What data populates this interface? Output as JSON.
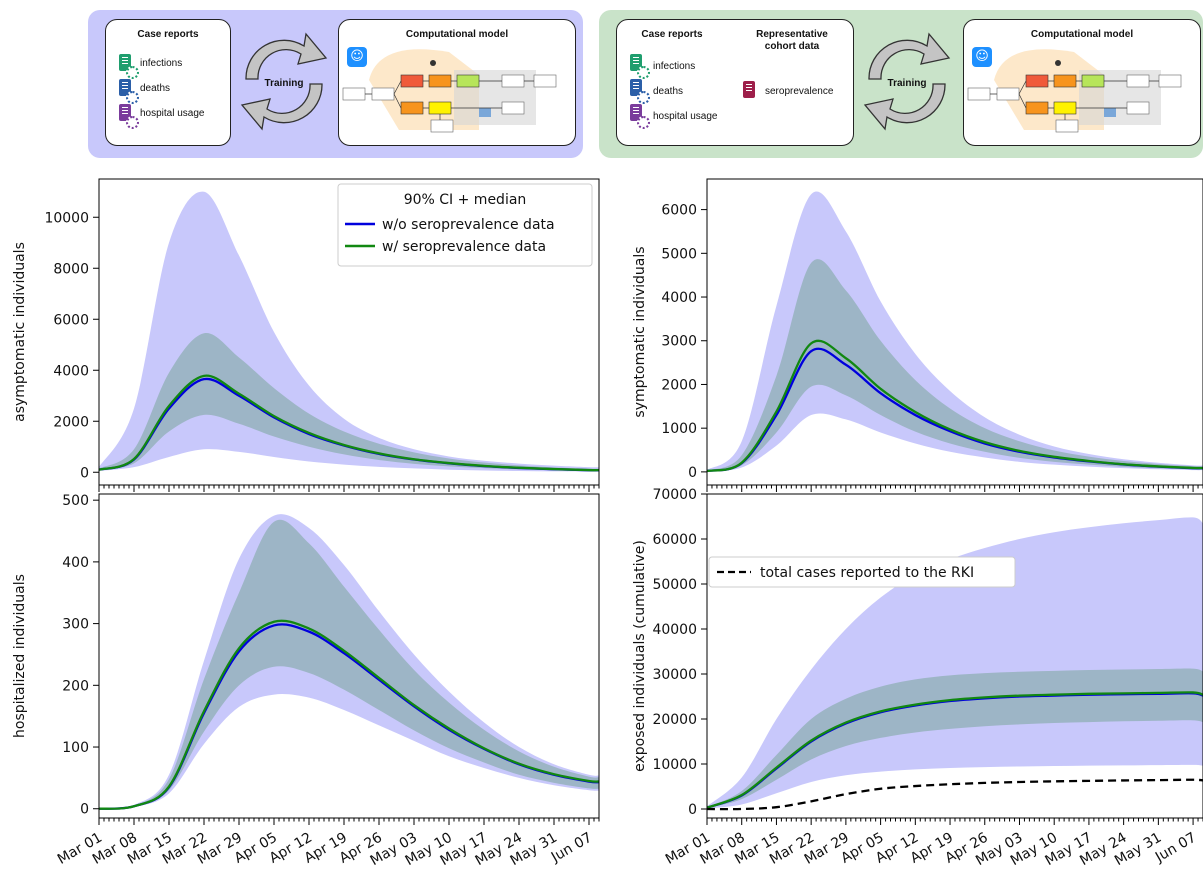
{
  "diagram": {
    "left": {
      "case_reports_title": "Case reports",
      "items": [
        "infections",
        "deaths",
        "hospital usage"
      ],
      "training_label": "Training",
      "model_title": "Computational model"
    },
    "right": {
      "case_reports_title": "Case reports",
      "items": [
        "infections",
        "deaths",
        "hospital usage"
      ],
      "cohort_title_1": "Representative",
      "cohort_title_2": "cohort data",
      "cohort_item": "seroprevalence",
      "training_label": "Training",
      "model_title": "Computational model"
    },
    "colors": {
      "left_panel": "#c8c8fb",
      "right_panel": "#c9e3c9",
      "infections_icon": "#1f9e6e",
      "deaths_icon": "#2b5fa8",
      "hospital_icon": "#7a3c9c",
      "seroprevalence_icon": "#9e1f4a",
      "compartment_red": "#f05a3a",
      "compartment_orange": "#f7941d",
      "compartment_green": "#b7e55a",
      "compartment_yellow": "#fff200"
    }
  },
  "legend": {
    "title": "90% CI + median",
    "without": "w/o seroprevalence data",
    "with": "w/ seroprevalence data",
    "rki": "total cases reported to the RKI"
  },
  "chart_data": [
    {
      "type": "area",
      "id": "asymptomatic",
      "ylabel": "asymptomatic individuals",
      "ylim": [
        -500,
        11500
      ],
      "yticks": [
        0,
        2000,
        4000,
        6000,
        8000,
        10000
      ],
      "x": [
        "Mar 01",
        "Mar 08",
        "Mar 15",
        "Mar 22",
        "Mar 29",
        "Apr 05",
        "Apr 12",
        "Apr 19",
        "Apr 26",
        "May 03",
        "May 10",
        "May 17",
        "May 24",
        "May 31",
        "Jun 07"
      ],
      "series": [
        {
          "name": "w/o seroprevalence data",
          "color": "#0000dd",
          "median": [
            100,
            500,
            2500,
            3650,
            3000,
            2150,
            1500,
            1050,
            720,
            500,
            350,
            240,
            170,
            120,
            80
          ],
          "ci90_low": [
            50,
            200,
            600,
            900,
            800,
            600,
            420,
            300,
            210,
            150,
            100,
            70,
            50,
            35,
            25
          ],
          "ci90_high": [
            200,
            2500,
            9000,
            11000,
            8500,
            5500,
            3400,
            2100,
            1350,
            900,
            620,
            450,
            340,
            260,
            200
          ]
        },
        {
          "name": "w/ seroprevalence data",
          "color": "#118811",
          "median": [
            100,
            520,
            2600,
            3780,
            3080,
            2200,
            1540,
            1070,
            740,
            510,
            360,
            250,
            175,
            125,
            85
          ],
          "ci90_low": [
            80,
            350,
            1600,
            2250,
            1900,
            1400,
            1000,
            700,
            480,
            330,
            230,
            160,
            110,
            80,
            55
          ],
          "ci90_high": [
            150,
            900,
            3900,
            5450,
            4500,
            3300,
            2300,
            1600,
            1120,
            780,
            540,
            380,
            270,
            190,
            140
          ]
        }
      ]
    },
    {
      "type": "area",
      "id": "symptomatic",
      "ylabel": "symptomatic individuals",
      "ylim": [
        -300,
        6700
      ],
      "yticks": [
        0,
        1000,
        2000,
        3000,
        4000,
        5000,
        6000
      ],
      "x": [
        "Mar 01",
        "Mar 08",
        "Mar 15",
        "Mar 22",
        "Mar 29",
        "Apr 05",
        "Apr 12",
        "Apr 19",
        "Apr 26",
        "May 03",
        "May 10",
        "May 17",
        "May 24",
        "May 31",
        "Jun 07"
      ],
      "series": [
        {
          "name": "w/o seroprevalence data",
          "color": "#0000dd",
          "median": [
            20,
            200,
            1300,
            2760,
            2450,
            1800,
            1300,
            930,
            650,
            460,
            330,
            240,
            170,
            120,
            85
          ],
          "ci90_low": [
            10,
            100,
            600,
            1300,
            1200,
            900,
            650,
            460,
            330,
            230,
            165,
            120,
            85,
            60,
            40
          ],
          "ci90_high": [
            40,
            700,
            3800,
            6350,
            5500,
            3900,
            2700,
            1850,
            1250,
            850,
            580,
            410,
            290,
            210,
            150
          ]
        },
        {
          "name": "w/ seroprevalence data",
          "color": "#118811",
          "median": [
            20,
            210,
            1380,
            2940,
            2600,
            1900,
            1370,
            970,
            680,
            480,
            345,
            250,
            175,
            125,
            90
          ],
          "ci90_low": [
            15,
            150,
            900,
            1950,
            1750,
            1300,
            920,
            650,
            460,
            320,
            230,
            165,
            115,
            80,
            55
          ],
          "ci90_high": [
            30,
            380,
            2200,
            4780,
            4150,
            3000,
            2100,
            1450,
            1000,
            700,
            490,
            350,
            250,
            180,
            130
          ]
        }
      ]
    },
    {
      "type": "area",
      "id": "hospitalized",
      "ylabel": "hospitalized individuals",
      "ylim": [
        -15,
        510
      ],
      "yticks": [
        0,
        100,
        200,
        300,
        400,
        500
      ],
      "x": [
        "Mar 01",
        "Mar 08",
        "Mar 15",
        "Mar 22",
        "Mar 29",
        "Apr 05",
        "Apr 12",
        "Apr 19",
        "Apr 26",
        "May 03",
        "May 10",
        "May 17",
        "May 24",
        "May 31",
        "Jun 07"
      ],
      "series": [
        {
          "name": "w/o seroprevalence data",
          "color": "#0000dd",
          "median": [
            0,
            4,
            35,
            155,
            255,
            297,
            287,
            252,
            209,
            166,
            128,
            97,
            72,
            55,
            44
          ],
          "ci90_low": [
            0,
            3,
            25,
            105,
            165,
            185,
            180,
            160,
            135,
            110,
            85,
            66,
            50,
            38,
            30
          ],
          "ci90_high": [
            0,
            6,
            55,
            240,
            405,
            475,
            455,
            395,
            320,
            250,
            190,
            140,
            100,
            72,
            55
          ]
        },
        {
          "name": "w/ seroprevalence data",
          "color": "#118811",
          "median": [
            0,
            4,
            36,
            158,
            260,
            303,
            292,
            256,
            212,
            168,
            130,
            98,
            73,
            56,
            45
          ],
          "ci90_low": [
            0,
            3,
            30,
            125,
            200,
            230,
            220,
            193,
            160,
            127,
            98,
            75,
            55,
            42,
            33
          ],
          "ci90_high": [
            0,
            5,
            48,
            210,
            350,
            465,
            430,
            360,
            290,
            225,
            172,
            128,
            93,
            68,
            52
          ]
        }
      ]
    },
    {
      "type": "area",
      "id": "exposed",
      "ylabel": "exposed individuals (cumulative)",
      "ylim": [
        -2000,
        70000
      ],
      "yticks": [
        0,
        10000,
        20000,
        30000,
        40000,
        50000,
        60000,
        70000
      ],
      "x": [
        "Mar 01",
        "Mar 08",
        "Mar 15",
        "Mar 22",
        "Mar 29",
        "Apr 05",
        "Apr 12",
        "Apr 19",
        "Apr 26",
        "May 03",
        "May 10",
        "May 17",
        "May 24",
        "May 31",
        "Jun 07"
      ],
      "series": [
        {
          "name": "w/o seroprevalence data",
          "color": "#0000dd",
          "median": [
            300,
            3000,
            9000,
            15000,
            19000,
            21500,
            23000,
            24000,
            24600,
            25000,
            25200,
            25400,
            25500,
            25600,
            25700
          ],
          "ci90_low": [
            100,
            1000,
            3500,
            6000,
            7500,
            8300,
            8800,
            9100,
            9300,
            9450,
            9550,
            9650,
            9700,
            9750,
            9800
          ],
          "ci90_high": [
            600,
            7000,
            20000,
            31000,
            40000,
            47000,
            52000,
            55500,
            58000,
            60000,
            61500,
            62600,
            63500,
            64200,
            64800
          ]
        },
        {
          "name": "w/ seroprevalence data",
          "color": "#118811",
          "median": [
            300,
            3100,
            9200,
            15200,
            19200,
            21700,
            23200,
            24200,
            24800,
            25200,
            25400,
            25600,
            25700,
            25800,
            25900
          ],
          "ci90_low": [
            200,
            2200,
            6500,
            11000,
            14000,
            15800,
            17000,
            17800,
            18400,
            18800,
            19100,
            19300,
            19500,
            19600,
            19700
          ],
          "ci90_high": [
            400,
            4000,
            12000,
            20000,
            24500,
            27200,
            28800,
            29700,
            30200,
            30500,
            30700,
            30900,
            31000,
            31100,
            31200
          ]
        },
        {
          "name": "total cases reported to the RKI",
          "color": "#000000",
          "dashed": true,
          "median": [
            0,
            0,
            400,
            1700,
            3300,
            4500,
            5100,
            5500,
            5800,
            6000,
            6150,
            6250,
            6350,
            6420,
            6500
          ]
        }
      ]
    }
  ]
}
